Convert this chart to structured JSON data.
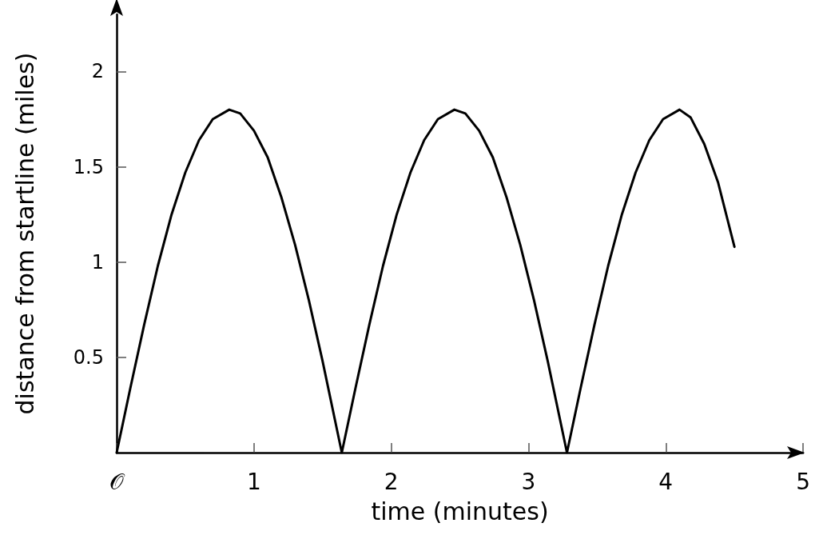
{
  "chart_data": {
    "type": "line",
    "xlabel": "time (minutes)",
    "ylabel": "distance from startline (miles)",
    "xlim": [
      0,
      5
    ],
    "ylim": [
      0,
      2.3
    ],
    "xticks": [
      {
        "value": 0,
        "label": "𝒪"
      },
      1,
      2,
      3,
      4,
      5
    ],
    "yticks": [
      0.5,
      1,
      1.5,
      2
    ],
    "grid": false,
    "marker": "none",
    "line_style": "solid",
    "series": [
      {
        "color": "#000000",
        "x": [
          0,
          0.1,
          0.2,
          0.3,
          0.4,
          0.5,
          0.6,
          0.7,
          0.82,
          0.9,
          1.0,
          1.1,
          1.2,
          1.3,
          1.4,
          1.5,
          1.64,
          1.74,
          1.84,
          1.94,
          2.04,
          2.14,
          2.24,
          2.34,
          2.46,
          2.54,
          2.64,
          2.74,
          2.84,
          2.94,
          3.04,
          3.14,
          3.28,
          3.38,
          3.48,
          3.58,
          3.68,
          3.78,
          3.88,
          3.98,
          4.1,
          4.18,
          4.28,
          4.38,
          4.5
        ],
        "values": [
          0,
          0.34,
          0.67,
          0.98,
          1.25,
          1.47,
          1.64,
          1.75,
          1.8,
          1.78,
          1.69,
          1.55,
          1.34,
          1.09,
          0.8,
          0.48,
          0,
          0.34,
          0.67,
          0.98,
          1.25,
          1.47,
          1.64,
          1.75,
          1.8,
          1.78,
          1.69,
          1.55,
          1.34,
          1.09,
          0.8,
          0.48,
          0,
          0.34,
          0.67,
          0.98,
          1.25,
          1.47,
          1.64,
          1.75,
          1.8,
          1.76,
          1.62,
          1.42,
          1.08
        ]
      }
    ]
  }
}
